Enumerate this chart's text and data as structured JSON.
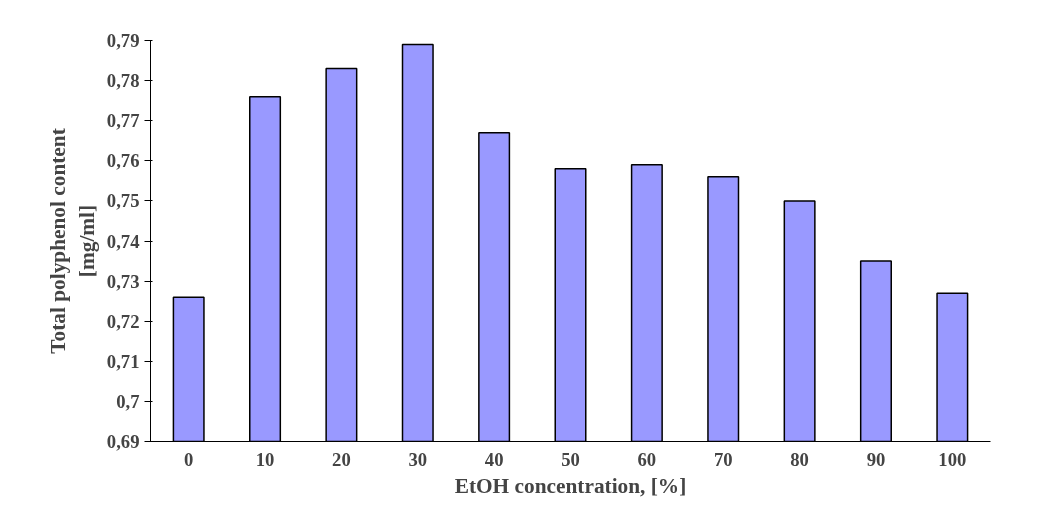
{
  "chart_data": {
    "type": "bar",
    "xlabel": "EtOH concentration, [%]",
    "ylabel": "Total polyphenol content\n[mg/ml]",
    "categories": [
      "0",
      "10",
      "20",
      "30",
      "40",
      "50",
      "60",
      "70",
      "80",
      "90",
      "100"
    ],
    "values": [
      0.726,
      0.776,
      0.783,
      0.789,
      0.767,
      0.758,
      0.759,
      0.756,
      0.75,
      0.735,
      0.727
    ],
    "color": "#9999ff",
    "ylim": [
      0.69,
      0.79
    ],
    "yticks": [
      {
        "value": 0.69,
        "label": "0,69"
      },
      {
        "value": 0.7,
        "label": "0,7"
      },
      {
        "value": 0.71,
        "label": "0,71"
      },
      {
        "value": 0.72,
        "label": "0,72"
      },
      {
        "value": 0.73,
        "label": "0,73"
      },
      {
        "value": 0.74,
        "label": "0,74"
      },
      {
        "value": 0.75,
        "label": "0,75"
      },
      {
        "value": 0.76,
        "label": "0,76"
      },
      {
        "value": 0.77,
        "label": "0,77"
      },
      {
        "value": 0.78,
        "label": "0,78"
      },
      {
        "value": 0.79,
        "label": "0,79"
      }
    ],
    "grid": false
  }
}
